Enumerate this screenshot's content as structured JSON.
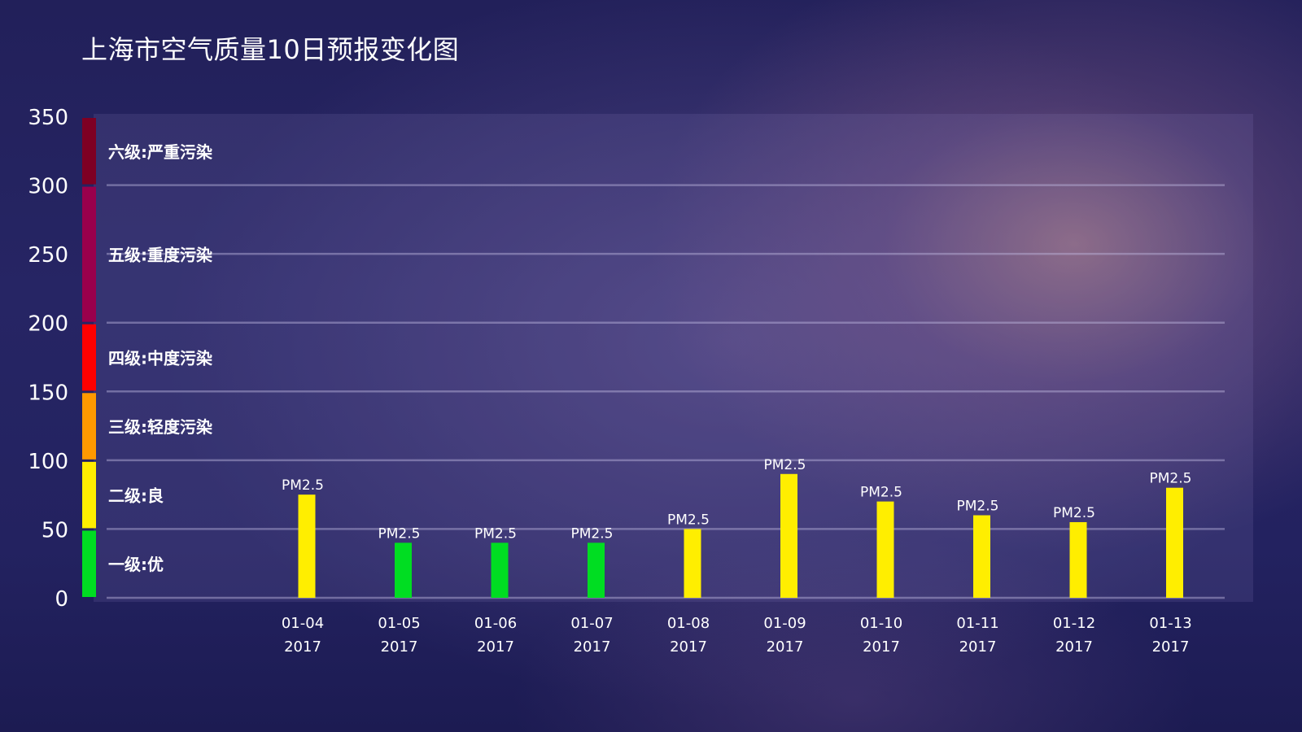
{
  "title": "上海市空气质量10日预报变化图",
  "chart_data": {
    "type": "bar",
    "title": "上海市空气质量10日预报变化图",
    "categories": [
      {
        "date": "01-04",
        "year": "2017"
      },
      {
        "date": "01-05",
        "year": "2017"
      },
      {
        "date": "01-06",
        "year": "2017"
      },
      {
        "date": "01-07",
        "year": "2017"
      },
      {
        "date": "01-08",
        "year": "2017"
      },
      {
        "date": "01-09",
        "year": "2017"
      },
      {
        "date": "01-10",
        "year": "2017"
      },
      {
        "date": "01-11",
        "year": "2017"
      },
      {
        "date": "01-12",
        "year": "2017"
      },
      {
        "date": "01-13",
        "year": "2017"
      }
    ],
    "values": [
      75,
      40,
      40,
      40,
      50,
      90,
      70,
      60,
      55,
      80
    ],
    "bar_labels": [
      "PM2.5",
      "PM2.5",
      "PM2.5",
      "PM2.5",
      "PM2.5",
      "PM2.5",
      "PM2.5",
      "PM2.5",
      "PM2.5",
      "PM2.5"
    ],
    "bar_colors": [
      "#ffee00",
      "#00dd22",
      "#00dd22",
      "#00dd22",
      "#ffee00",
      "#ffee00",
      "#ffee00",
      "#ffee00",
      "#ffee00",
      "#ffee00"
    ],
    "y_ticks": [
      0,
      50,
      100,
      150,
      200,
      250,
      300,
      350
    ],
    "ylim": [
      0,
      350
    ],
    "grid": true,
    "levels": [
      {
        "label": "一级:优",
        "from": 0,
        "to": 50,
        "color": "#00dd22"
      },
      {
        "label": "二级:良",
        "from": 50,
        "to": 100,
        "color": "#ffee00"
      },
      {
        "label": "三级:轻度污染",
        "from": 100,
        "to": 150,
        "color": "#ff9900"
      },
      {
        "label": "四级:中度污染",
        "from": 150,
        "to": 200,
        "color": "#ff0000"
      },
      {
        "label": "五级:重度污染",
        "from": 200,
        "to": 300,
        "color": "#99004c"
      },
      {
        "label": "六级:严重污染",
        "from": 300,
        "to": 350,
        "color": "#7e0023"
      }
    ]
  }
}
